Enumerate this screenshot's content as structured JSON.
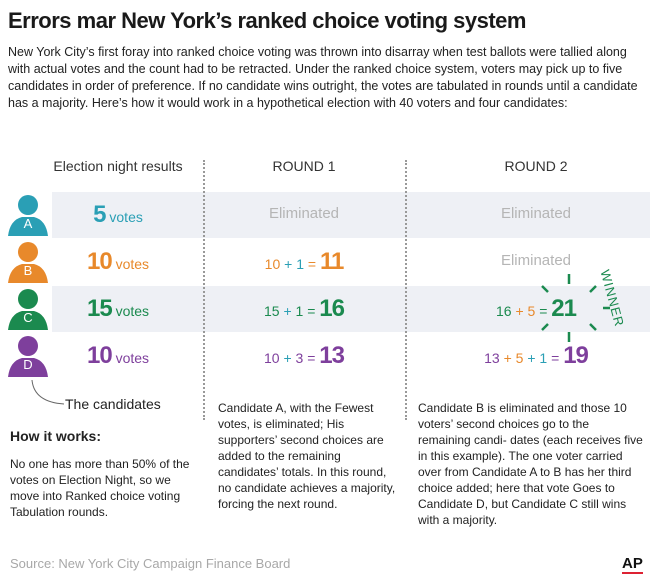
{
  "title": "Errors mar New York’s ranked choice voting system",
  "intro": [
    "New York City’s first foray into ranked choice voting was thrown into disarray when test ballots were tallied along with actual",
    "votes and the count had to be retracted. Under the ranked choice system, voters may pick up to five candidates in order of",
    "preference. If no candidate wins outright, the votes are tabulated in rounds until a candidate has a majority. Here’s how it would",
    "work in a hypothetical election with 40 voters and four candidates:"
  ],
  "headers": {
    "election": "Election night results",
    "round1": "ROUND 1",
    "round2": "ROUND 2"
  },
  "colors": {
    "A": "#2a9fb5",
    "B": "#e8892b",
    "C": "#1b8a4f",
    "D": "#7e3f9c",
    "eliminated": "#b5b5b5",
    "band": "#eef0f5"
  },
  "candidates": [
    {
      "letter": "A",
      "votes": "5",
      "votes_label": "votes",
      "r1": "Eliminated",
      "r2": "Eliminated"
    },
    {
      "letter": "B",
      "votes": "10",
      "votes_label": "votes",
      "r1": [
        "10",
        "+",
        "1",
        "=",
        "11"
      ],
      "r2": "Eliminated"
    },
    {
      "letter": "C",
      "votes": "15",
      "votes_label": "votes",
      "r1": [
        "15",
        "+",
        "1",
        "=",
        "16"
      ],
      "r2": [
        "16",
        "+",
        "5",
        "=",
        "21"
      ]
    },
    {
      "letter": "D",
      "votes": "10",
      "votes_label": "votes",
      "r1": [
        "10",
        "+",
        "3",
        "=",
        "13"
      ],
      "r2": [
        "13",
        "+",
        "5",
        "+",
        "1",
        "=",
        "19"
      ]
    }
  ],
  "winner_label": "WINNER",
  "candidates_label": "The candidates",
  "how_title": "How it works:",
  "how_text": [
    "No one has more than 50%",
    "of the votes on Election",
    "Night, so we move into",
    "Ranked choice voting",
    "Tabulation rounds."
  ],
  "round1_text": [
    "Candidate A, with the",
    "Fewest votes, is eliminated;",
    "His supporters’ second choices",
    "are added to the remaining",
    "candidates’ totals. In this round,",
    "no candidate achieves a majority,",
    "forcing the next round."
  ],
  "round2_text": [
    "Candidate B is eliminated and those 10 voters’",
    "second choices go to the remaining candi-",
    "dates (each receives five in this example). The",
    "one voter carried over from Candidate A to B",
    "has her third choice added; here that vote",
    "Goes to Candidate D, but Candidate C still",
    "wins with a majority."
  ],
  "source": "Source: New York City Campaign Finance Board",
  "logo": "AP"
}
